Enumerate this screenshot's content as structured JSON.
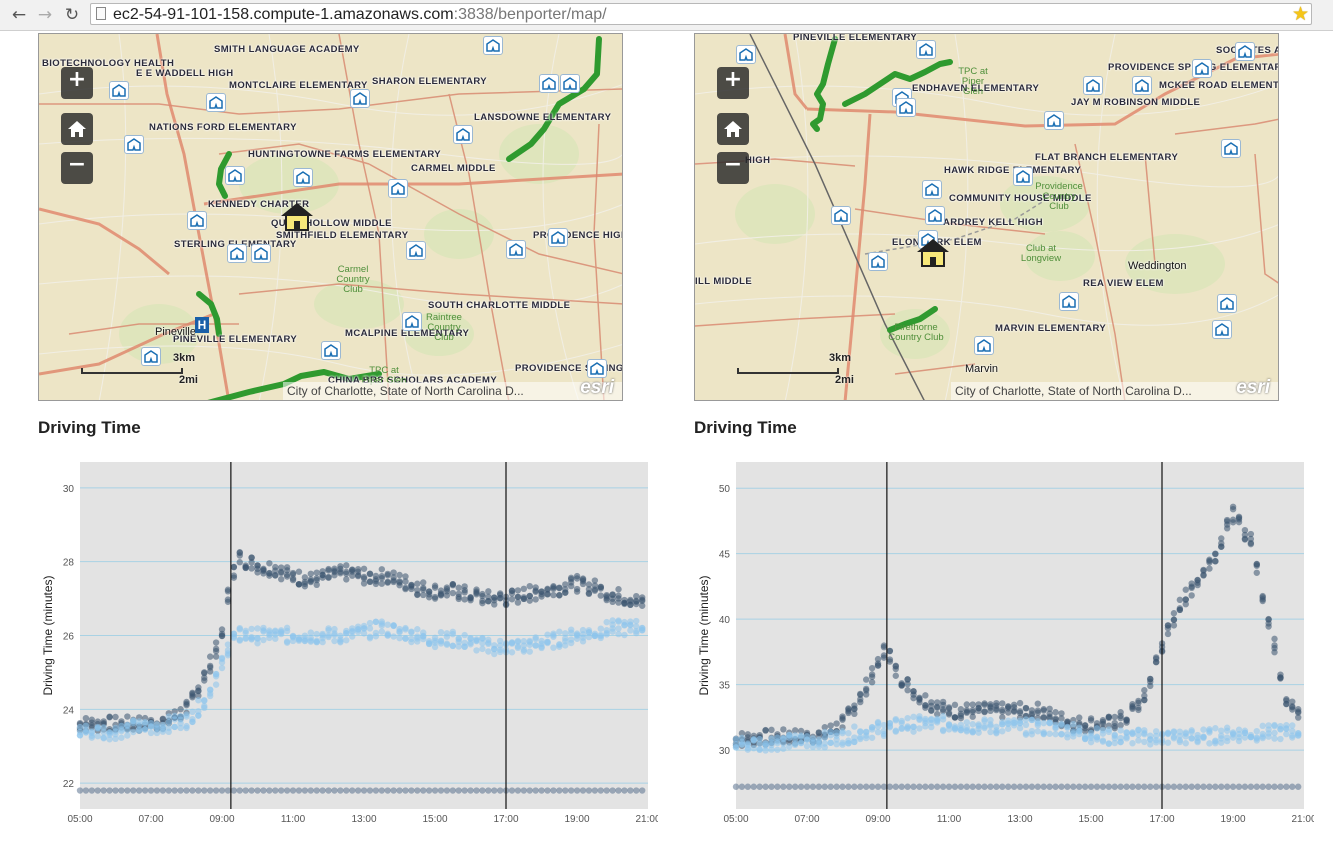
{
  "browser": {
    "url_host": "ec2-54-91-101-158.compute-1.amazonaws.com",
    "url_path": ":3838/benporter/map/"
  },
  "map_left": {
    "zoom_in": "+",
    "zoom_out": "−",
    "scale_km": "3km",
    "scale_mi": "2mi",
    "attribution": "City of Charlotte, State of North Carolina D...",
    "esri": "esri",
    "labels": [
      "BIOTECHNOLOGY HEALTH",
      "E E WADDELL HIGH",
      "SMITH LANGUAGE ACADEMY",
      "MONTCLAIRE ELEMENTARY",
      "SHARON ELEMENTARY",
      "NATIONS FORD ELEMENTARY",
      "LANSDOWNE ELEMENTARY",
      "HUNTINGTOWNE FARMS ELEMENTARY",
      "CARMEL MIDDLE",
      "KENNEDY CHARTER",
      "QUAIL HOLLOW MIDDLE",
      "SMITHFIELD ELEMENTARY",
      "STERLING ELEMENTARY",
      "PROVIDENCE HIGH",
      "SOUTH CHARLOTTE MIDDLE",
      "PINEVILLE ELEMENTARY",
      "MCALPINE ELEMENTARY",
      "PROVIDENCE SPRING EL",
      "CHINA BRS SCHOLARS ACADEMY"
    ],
    "green_labels": [
      "Carmel Country Club",
      "Raintree Country Club",
      "TPC at Piper Glen"
    ],
    "towns": [
      "Pineville"
    ]
  },
  "map_right": {
    "zoom_in": "+",
    "zoom_out": "−",
    "scale_km": "3km",
    "scale_mi": "2mi",
    "attribution": "City of Charlotte, State of North Carolina D...",
    "esri": "esri",
    "labels": [
      "PINEVILLE ELEMENTARY",
      "SOCRATES ACA",
      "PROVIDENCE SPRING ELEMENTARY",
      "MCKEE ROAD ELEMENTARY",
      "ENDHAVEN ELEMENTARY",
      "JAY M ROBINSON MIDDLE",
      "FLAT BRANCH ELEMENTARY",
      "HAWK RIDGE ELEMENTARY",
      "COMMUNITY HOUSE MIDDLE",
      "ARDREY KELL HIGH",
      "ELON PARK ELEM",
      "ILL MIDDLE",
      "REA VIEW ELEM",
      "MARVIN ELEMENTARY",
      "HIGH"
    ],
    "green_labels": [
      "TPC at Piper Glen",
      "Providence Country Club",
      "Club at Longview",
      "Firethorne Country Club"
    ],
    "towns": [
      "Weddington",
      "Marvin"
    ]
  },
  "left_panel": {
    "title": "Driving Time",
    "chart_data": {
      "type": "scatter",
      "xlabel": "",
      "ylabel": "Driving Time (minutes)",
      "xlim": [
        "05:00",
        "21:00"
      ],
      "ylim": [
        21.3,
        30.7
      ],
      "x_ticks": [
        "05:00",
        "07:00",
        "09:00",
        "11:00",
        "13:00",
        "15:00",
        "17:00",
        "19:00",
        "21:00"
      ],
      "y_ticks": [
        22,
        24,
        26,
        28,
        30
      ],
      "vlines": [
        "09:15",
        "17:00"
      ],
      "grid": true,
      "series": [
        {
          "color": "#3a5470",
          "x": [
            5,
            5.5,
            6,
            6.5,
            7,
            7.5,
            8,
            8.25,
            8.5,
            8.75,
            9,
            9.25,
            9.5,
            9.75,
            10,
            10.5,
            11,
            11.5,
            12,
            12.5,
            13,
            13.5,
            14,
            14.5,
            15,
            15.5,
            16,
            16.5,
            17,
            17.5,
            18,
            18.5,
            19,
            19.5,
            20,
            20.5,
            21
          ],
          "y": [
            23.6,
            23.6,
            23.6,
            23.6,
            23.6,
            23.7,
            24,
            24.4,
            24.9,
            25.4,
            26,
            27.6,
            28.1,
            28,
            27.9,
            27.8,
            27.6,
            27.5,
            27.6,
            27.7,
            27.6,
            27.6,
            27.5,
            27.3,
            27.2,
            27.2,
            27.1,
            27,
            27,
            27.1,
            27.2,
            27.3,
            27.4,
            27.3,
            27.1,
            27,
            26.8
          ]
        },
        {
          "color": "#8cc4ec",
          "x": [
            5,
            5.5,
            6,
            6.5,
            7,
            7.5,
            8,
            8.5,
            9,
            9.25,
            9.5,
            10,
            10.5,
            11,
            11.5,
            12,
            12.5,
            13,
            13.5,
            14,
            14.5,
            15,
            15.5,
            16,
            16.5,
            17,
            17.5,
            18,
            18.5,
            19,
            19.5,
            20,
            20.5,
            21
          ],
          "y": [
            23.4,
            23.4,
            23.4,
            23.5,
            23.5,
            23.6,
            23.7,
            24.2,
            25.2,
            25.9,
            26,
            26,
            26,
            26,
            26,
            26,
            26,
            26.1,
            26.2,
            26.1,
            26,
            25.9,
            25.9,
            25.8,
            25.7,
            25.7,
            25.7,
            25.8,
            25.9,
            26,
            26.1,
            26.2,
            26.2,
            26.3
          ]
        },
        {
          "color": "#5b7390",
          "x": [
            5,
            6,
            7,
            8,
            9,
            10,
            11,
            12,
            13,
            14,
            15,
            16,
            17,
            18,
            19,
            20,
            21
          ],
          "y": [
            21.8,
            21.8,
            21.8,
            21.8,
            21.8,
            21.8,
            21.8,
            21.8,
            21.8,
            21.8,
            21.8,
            21.8,
            21.8,
            21.8,
            21.8,
            21.8,
            21.8
          ]
        }
      ]
    }
  },
  "right_panel": {
    "title": "Driving Time",
    "chart_data": {
      "type": "scatter",
      "xlabel": "",
      "ylabel": "Driving Time (minutes)",
      "xlim": [
        "05:00",
        "21:00"
      ],
      "ylim": [
        25.5,
        52
      ],
      "x_ticks": [
        "05:00",
        "07:00",
        "09:00",
        "11:00",
        "13:00",
        "15:00",
        "17:00",
        "19:00",
        "21:00"
      ],
      "y_ticks": [
        30,
        35,
        40,
        45,
        50
      ],
      "vlines": [
        "09:15",
        "17:00"
      ],
      "grid": true,
      "series": [
        {
          "color": "#3a5470",
          "x": [
            5,
            5.5,
            6,
            6.5,
            7,
            7.5,
            8,
            8.5,
            9,
            9.25,
            9.5,
            10,
            10.5,
            11,
            11.5,
            12,
            12.5,
            13,
            13.5,
            14,
            14.5,
            15,
            15.5,
            16,
            16.5,
            17,
            17.5,
            18,
            18.5,
            19,
            19.5,
            20,
            20.5,
            21
          ],
          "y": [
            30.8,
            30.9,
            31,
            31,
            31,
            31.2,
            32,
            34,
            36.5,
            38,
            36,
            34.5,
            33.5,
            33,
            33,
            33,
            33,
            33,
            33,
            32.5,
            32,
            32,
            32,
            32.5,
            34,
            38,
            41,
            43,
            45,
            48,
            46,
            40,
            34,
            32
          ]
        },
        {
          "color": "#8cc4ec",
          "x": [
            5,
            5.5,
            6,
            6.5,
            7,
            7.5,
            8,
            8.5,
            9,
            9.5,
            10,
            10.5,
            11,
            11.5,
            12,
            12.5,
            13,
            13.5,
            14,
            14.5,
            15,
            15.5,
            16,
            16.5,
            17,
            17.5,
            18,
            18.5,
            19,
            19.5,
            20,
            20.5,
            21
          ],
          "y": [
            30.5,
            30.5,
            30.6,
            30.6,
            30.7,
            30.8,
            31,
            31.3,
            31.6,
            31.8,
            32,
            32,
            32,
            31.9,
            31.8,
            31.8,
            31.8,
            31.7,
            31.7,
            31.5,
            31.2,
            31,
            31,
            31,
            31,
            31,
            31,
            31.1,
            31.2,
            31.3,
            31.3,
            31.4,
            31.5
          ]
        },
        {
          "color": "#5b7390",
          "x": [
            5,
            6,
            7,
            8,
            9,
            10,
            11,
            12,
            13,
            14,
            15,
            16,
            17,
            18,
            19,
            20,
            21
          ],
          "y": [
            27.2,
            27.2,
            27.2,
            27.2,
            27.2,
            27.2,
            27.2,
            27.2,
            27.2,
            27.2,
            27.2,
            27.2,
            27.2,
            27.2,
            27.2,
            27.2,
            27.2
          ]
        }
      ]
    }
  }
}
